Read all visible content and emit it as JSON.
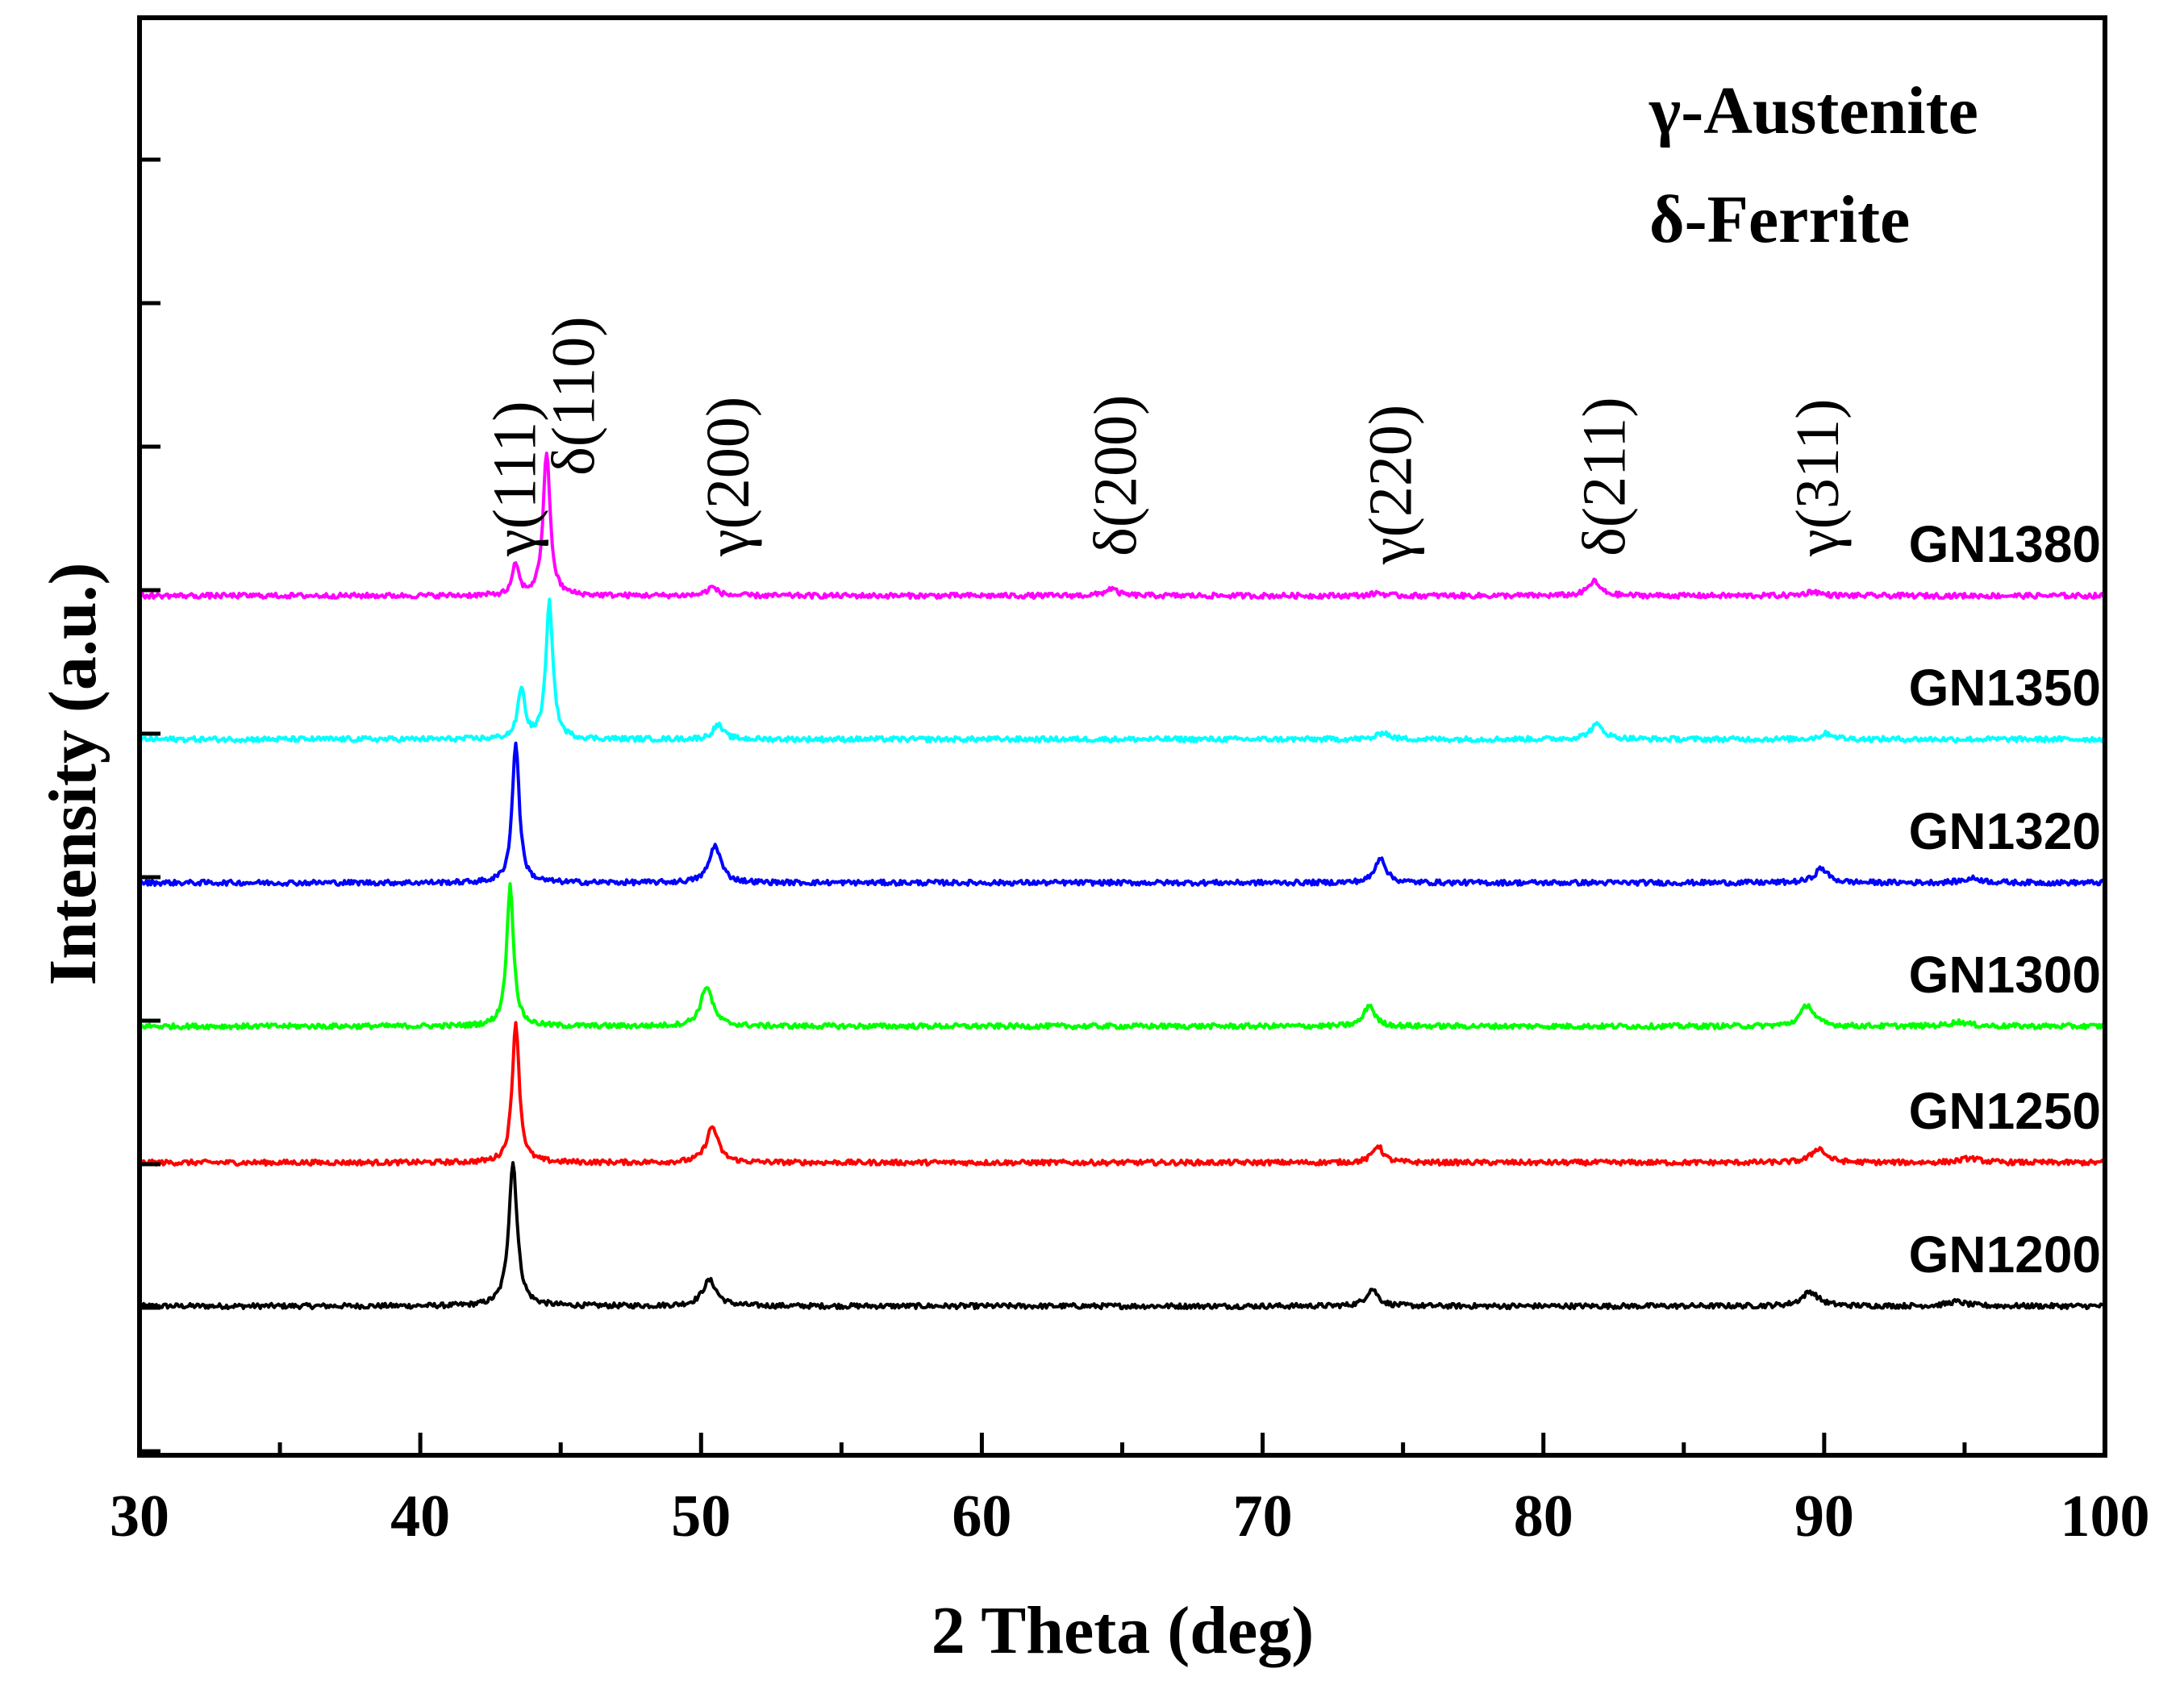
{
  "chart_data": {
    "type": "line",
    "xlabel": "2 Theta (deg)",
    "ylabel": "Intensity (a.u.)",
    "xlim": [
      30,
      100
    ],
    "xticks": [
      "30",
      "40",
      "50",
      "60",
      "70",
      "80",
      "90",
      "100"
    ],
    "legend": [
      "γ-Austenite",
      "δ-Ferrite"
    ],
    "peak_labels": [
      {
        "text": "γ(111)",
        "x": 43.4
      },
      {
        "text": "δ(110)",
        "x": 45.5
      },
      {
        "text": "γ(200)",
        "x": 51.0
      },
      {
        "text": "δ(200)",
        "x": 64.8
      },
      {
        "text": "γ(220)",
        "x": 74.6
      },
      {
        "text": "δ(211)",
        "x": 82.2
      },
      {
        "text": "γ(311)",
        "x": 89.8
      }
    ],
    "series": [
      {
        "name": "GN1200",
        "color": "#000000",
        "baseline": 0.0,
        "slope": 0.1,
        "peaks": [
          {
            "x": 43.3,
            "h": 1.0,
            "w": 0.18
          },
          {
            "x": 50.3,
            "h": 0.18,
            "w": 0.3
          },
          {
            "x": 73.9,
            "h": 0.12,
            "w": 0.25
          },
          {
            "x": 89.5,
            "h": 0.1,
            "w": 0.35
          },
          {
            "x": 94.7,
            "h": 0.03,
            "w": 0.4
          }
        ]
      },
      {
        "name": "GN1250",
        "color": "#ff0000",
        "baseline": 1.0,
        "slope": 0.0,
        "peaks": [
          {
            "x": 43.4,
            "h": 0.98,
            "w": 0.15
          },
          {
            "x": 50.4,
            "h": 0.25,
            "w": 0.25
          },
          {
            "x": 74.1,
            "h": 0.12,
            "w": 0.22
          },
          {
            "x": 89.8,
            "h": 0.1,
            "w": 0.3
          },
          {
            "x": 95.2,
            "h": 0.03,
            "w": 0.4
          }
        ]
      },
      {
        "name": "GN1300",
        "color": "#00ff00",
        "baseline": 1.95,
        "slope": 0.03,
        "peaks": [
          {
            "x": 43.2,
            "h": 0.98,
            "w": 0.15
          },
          {
            "x": 50.2,
            "h": 0.28,
            "w": 0.25
          },
          {
            "x": 73.8,
            "h": 0.15,
            "w": 0.22
          },
          {
            "x": 89.4,
            "h": 0.15,
            "w": 0.28
          },
          {
            "x": 94.8,
            "h": 0.03,
            "w": 0.4
          }
        ]
      },
      {
        "name": "GN1320",
        "color": "#0000ff",
        "baseline": 2.95,
        "slope": 0.02,
        "peaks": [
          {
            "x": 43.4,
            "h": 0.98,
            "w": 0.15
          },
          {
            "x": 50.5,
            "h": 0.26,
            "w": 0.25
          },
          {
            "x": 74.2,
            "h": 0.18,
            "w": 0.22
          },
          {
            "x": 89.9,
            "h": 0.1,
            "w": 0.28
          },
          {
            "x": 95.3,
            "h": 0.03,
            "w": 0.4
          }
        ]
      },
      {
        "name": "GN1350",
        "color": "#00ffff",
        "baseline": 3.95,
        "slope": 0.05,
        "peaks": [
          {
            "x": 43.6,
            "h": 0.35,
            "w": 0.15
          },
          {
            "x": 44.6,
            "h": 0.95,
            "w": 0.15
          },
          {
            "x": 50.6,
            "h": 0.1,
            "w": 0.22
          },
          {
            "x": 74.3,
            "h": 0.05,
            "w": 0.22
          },
          {
            "x": 81.9,
            "h": 0.1,
            "w": 0.3
          },
          {
            "x": 90.1,
            "h": 0.04,
            "w": 0.3
          }
        ]
      },
      {
        "name": "GN1380",
        "color": "#ff00ff",
        "baseline": 4.95,
        "slope": 0.0,
        "peaks": [
          {
            "x": 43.4,
            "h": 0.22,
            "w": 0.13
          },
          {
            "x": 44.5,
            "h": 1.0,
            "w": 0.15
          },
          {
            "x": 50.4,
            "h": 0.06,
            "w": 0.22
          },
          {
            "x": 64.6,
            "h": 0.05,
            "w": 0.25
          },
          {
            "x": 74.1,
            "h": 0.02,
            "w": 0.22
          },
          {
            "x": 81.8,
            "h": 0.1,
            "w": 0.25
          },
          {
            "x": 89.6,
            "h": 0.03,
            "w": 0.3
          }
        ]
      }
    ]
  }
}
